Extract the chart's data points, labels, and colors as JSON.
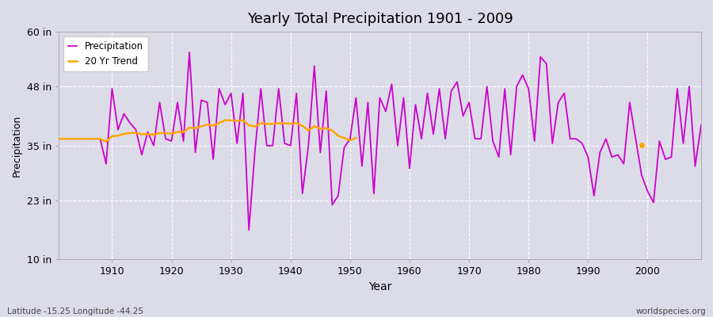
{
  "title": "Yearly Total Precipitation 1901 - 2009",
  "xlabel": "Year",
  "ylabel": "Precipitation",
  "xlim": [
    1901,
    2009
  ],
  "ylim": [
    10,
    60
  ],
  "yticks": [
    10,
    23,
    35,
    48,
    60
  ],
  "ytick_labels": [
    "10 in",
    "23 in",
    "35 in",
    "48 in",
    "60 in"
  ],
  "xticks": [
    1910,
    1920,
    1930,
    1940,
    1950,
    1960,
    1970,
    1980,
    1990,
    2000
  ],
  "precipitation_color": "#cc00cc",
  "trend_color": "#FFA500",
  "bg_color": "#dcdce8",
  "grid_color": "#ffffff",
  "precipitation": {
    "1901": 36.5,
    "1902": 36.5,
    "1903": 36.5,
    "1904": 36.5,
    "1905": 36.5,
    "1906": 36.5,
    "1907": 36.5,
    "1908": 36.5,
    "1909": 31.0,
    "1910": 47.5,
    "1911": 38.5,
    "1912": 42.0,
    "1913": 40.0,
    "1914": 38.5,
    "1915": 33.0,
    "1916": 38.0,
    "1917": 35.0,
    "1918": 44.5,
    "1919": 36.5,
    "1920": 36.0,
    "1921": 44.5,
    "1922": 36.0,
    "1923": 55.5,
    "1924": 33.5,
    "1925": 45.0,
    "1926": 44.5,
    "1927": 32.0,
    "1928": 47.5,
    "1929": 44.0,
    "1930": 46.5,
    "1931": 35.5,
    "1932": 46.5,
    "1933": 16.5,
    "1934": 33.5,
    "1935": 47.5,
    "1936": 35.0,
    "1937": 35.0,
    "1938": 47.5,
    "1939": 35.5,
    "1940": 35.0,
    "1941": 46.5,
    "1942": 24.5,
    "1943": 35.0,
    "1944": 52.5,
    "1945": 33.5,
    "1946": 47.0,
    "1947": 22.0,
    "1948": 24.0,
    "1949": 34.5,
    "1950": 36.5,
    "1951": 45.5,
    "1952": 30.5,
    "1953": 44.5,
    "1954": 24.5,
    "1955": 45.5,
    "1956": 42.5,
    "1957": 48.5,
    "1958": 35.0,
    "1959": 45.5,
    "1960": 30.0,
    "1961": 44.0,
    "1962": 36.5,
    "1963": 46.5,
    "1964": 37.5,
    "1965": 47.5,
    "1966": 36.5,
    "1967": 47.0,
    "1968": 49.0,
    "1969": 41.5,
    "1970": 44.5,
    "1971": 36.5,
    "1972": 36.5,
    "1973": 48.0,
    "1974": 36.0,
    "1975": 32.5,
    "1976": 47.5,
    "1977": 33.0,
    "1978": 48.0,
    "1979": 50.5,
    "1980": 47.5,
    "1981": 36.0,
    "1982": 54.5,
    "1983": 53.0,
    "1984": 35.5,
    "1985": 44.5,
    "1986": 46.5,
    "1987": 36.5,
    "1988": 36.5,
    "1989": 35.5,
    "1990": 32.5,
    "1991": 24.0,
    "1992": 33.5,
    "1993": 36.5,
    "1994": 32.5,
    "1995": 33.0,
    "1996": 31.0,
    "1997": 44.5,
    "1998": 36.5,
    "1999": 28.5,
    "2000": 25.0,
    "2001": 22.5,
    "2002": 36.0,
    "2003": 32.0,
    "2004": 32.5,
    "2005": 47.5,
    "2006": 35.5,
    "2007": 48.0,
    "2008": 30.5,
    "2009": 39.5
  },
  "footer_left": "Latitude -15.25 Longitude -44.25",
  "footer_right": "worldspecies.org",
  "trend_end_year": 1951,
  "trend_dot_year": 1999,
  "trend_dot_value": 35.2
}
